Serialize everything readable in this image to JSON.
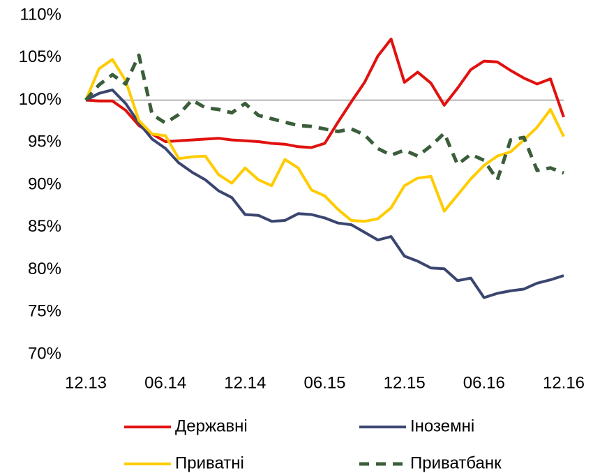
{
  "chart_data": {
    "type": "line",
    "categories": [
      "12.13",
      null,
      null,
      null,
      null,
      null,
      "06.14",
      null,
      null,
      null,
      null,
      null,
      "12.14",
      null,
      null,
      null,
      null,
      null,
      "06.15",
      null,
      null,
      null,
      null,
      null,
      "12.15",
      null,
      null,
      null,
      null,
      null,
      "06.16",
      null,
      null,
      null,
      null,
      null,
      "12.16"
    ],
    "series": [
      {
        "name": "Державні",
        "color": "#e0120f",
        "dash": false,
        "values": [
          100,
          99.9,
          99.9,
          98.8,
          97,
          96,
          95.1,
          95.2,
          95.3,
          95.4,
          95.5,
          95.3,
          95.2,
          95.1,
          94.9,
          94.8,
          94.5,
          94.4,
          94.9,
          97.4,
          99.8,
          102.1,
          105.2,
          107.2,
          102.1,
          103.3,
          102,
          99.4,
          101.4,
          103.6,
          104.6,
          104.5,
          103.5,
          102.6,
          101.9,
          102.5,
          98
        ]
      },
      {
        "name": "Іноземні",
        "color": "#3b4670",
        "dash": false,
        "values": [
          100,
          100.8,
          101.2,
          99.6,
          97.3,
          95.4,
          94.3,
          92.6,
          91.5,
          90.6,
          89.3,
          88.5,
          86.5,
          86.4,
          85.7,
          85.8,
          86.6,
          86.5,
          86.1,
          85.5,
          85.3,
          84.4,
          83.5,
          83.9,
          81.6,
          81,
          80.2,
          80.1,
          78.7,
          79,
          76.7,
          77.2,
          77.5,
          77.7,
          78.4,
          78.8,
          79.3
        ]
      },
      {
        "name": "Приватні",
        "color": "#ffcc00",
        "dash": false,
        "values": [
          100,
          103.7,
          104.8,
          102.3,
          97.6,
          96,
          95.8,
          93.1,
          93.3,
          93.4,
          91.2,
          90.2,
          92,
          90.6,
          89.9,
          93,
          92,
          89.4,
          88.7,
          87.1,
          85.8,
          85.7,
          86,
          87.3,
          89.9,
          90.8,
          91,
          86.9,
          88.8,
          90.7,
          92.3,
          93.4,
          93.9,
          95.3,
          96.8,
          98.9,
          95.7
        ]
      },
      {
        "name": "Приватбанк",
        "color": "#3a5e39",
        "dash": true,
        "values": [
          100,
          101.8,
          103,
          101.9,
          105.3,
          98.3,
          97.3,
          98.3,
          100,
          99.1,
          98.9,
          98.5,
          99.6,
          98.2,
          97.8,
          97.4,
          97,
          96.9,
          96.6,
          96.3,
          96.6,
          95.9,
          94.3,
          93.5,
          94.1,
          93.4,
          94.6,
          96.1,
          92.4,
          93.6,
          92.9,
          90.6,
          95.3,
          95.6,
          91.7,
          92,
          91.4
        ]
      }
    ],
    "ylim": [
      70,
      110
    ],
    "yticks": [
      {
        "value": 70,
        "label": "70%"
      },
      {
        "value": 75,
        "label": "75%"
      },
      {
        "value": 80,
        "label": "80%"
      },
      {
        "value": 85,
        "label": "85%"
      },
      {
        "value": 90,
        "label": "90%"
      },
      {
        "value": 95,
        "label": "95%"
      },
      {
        "value": 100,
        "label": "100%"
      },
      {
        "value": 105,
        "label": "105%"
      },
      {
        "value": 110,
        "label": "110%"
      }
    ],
    "x_axis_crosses": 100,
    "grid": false,
    "legend": "bottom"
  }
}
